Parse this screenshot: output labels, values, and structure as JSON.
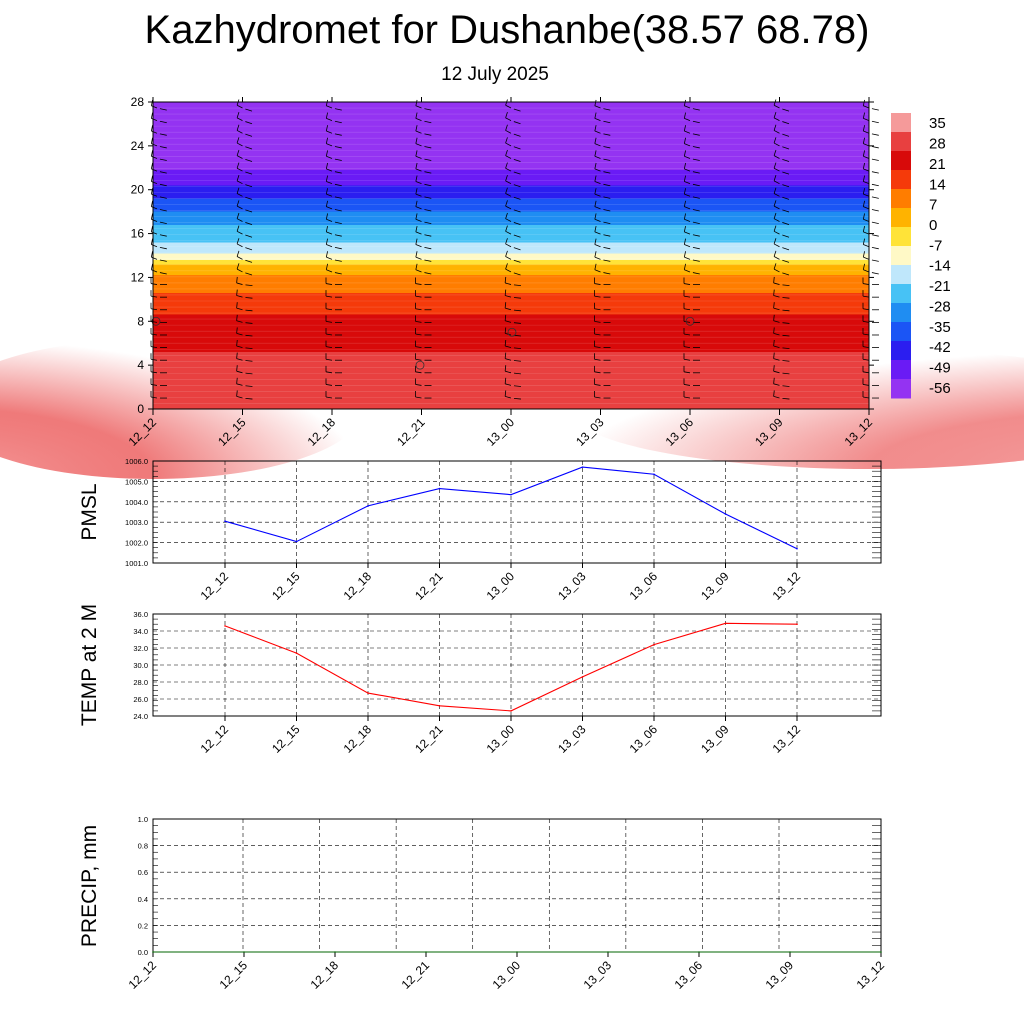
{
  "title": "Kazhydromet for Dushanbe(38.57 68.78)",
  "subtitle": "12 July 2025",
  "chart_data": [
    {
      "type": "heatmap",
      "name": "temperature cross-section with wind barbs",
      "y_ticks": [
        "0",
        "4",
        "8",
        "12",
        "16",
        "20",
        "24",
        "28"
      ],
      "ylim": [
        0,
        28
      ],
      "x_ticks": [
        "12_12",
        "12_15",
        "12_18",
        "12_21",
        "13_00",
        "13_03",
        "13_06",
        "13_09",
        "13_12"
      ],
      "colorbar_labels": [
        "35",
        "28",
        "21",
        "14",
        "7",
        "0",
        "-7",
        "-14",
        "-21",
        "-28",
        "-35",
        "-42",
        "-49",
        "-56"
      ],
      "colorbar_range": [
        -60,
        38
      ],
      "colors": [
        "#9433f2",
        "#6a1bf5",
        "#2b1ef0",
        "#1b55f5",
        "#1f8df2",
        "#47c2f5",
        "#bfe7fb",
        "#fff9c6",
        "#ffe338",
        "#ffb300",
        "#ff7d00",
        "#f53a0a",
        "#d80a0a",
        "#e84040",
        "#f59a9a"
      ],
      "vertical_profile": [
        {
          "level": 0,
          "value": 30
        },
        {
          "level": 4,
          "value": 27
        },
        {
          "level": 8,
          "value": 20
        },
        {
          "level": 11,
          "value": 10
        },
        {
          "level": 13,
          "value": 2
        },
        {
          "level": 13.6,
          "value": -10
        },
        {
          "level": 15,
          "value": -20
        },
        {
          "level": 17,
          "value": -29
        },
        {
          "level": 19,
          "value": -40
        },
        {
          "level": 21,
          "value": -50
        },
        {
          "level": 22.5,
          "value": -58
        },
        {
          "level": 28,
          "value": -59
        }
      ]
    },
    {
      "type": "line",
      "ylabel": "PMSL",
      "categories": [
        "12_12",
        "12_15",
        "12_18",
        "12_21",
        "13_00",
        "13_03",
        "13_06",
        "13_09",
        "13_12"
      ],
      "y_ticks": [
        "1001.0",
        "1002.0",
        "1003.0",
        "1004.0",
        "1005.0",
        "1006.0"
      ],
      "ylim": [
        1001,
        1006
      ],
      "color": "#0000ff",
      "values": [
        1003.05,
        1002.05,
        1003.8,
        1004.65,
        1004.35,
        1005.7,
        1005.35,
        1003.4,
        1001.7
      ]
    },
    {
      "type": "line",
      "ylabel": "TEMP at 2 M",
      "categories": [
        "12_12",
        "12_15",
        "12_18",
        "12_21",
        "13_00",
        "13_03",
        "13_06",
        "13_09",
        "13_12"
      ],
      "y_ticks": [
        "24.0",
        "26.0",
        "28.0",
        "30.0",
        "32.0",
        "34.0",
        "36.0"
      ],
      "ylim": [
        24,
        36
      ],
      "color": "#ff0000",
      "values": [
        34.6,
        31.4,
        26.7,
        25.2,
        24.6,
        28.6,
        32.4,
        34.9,
        34.8
      ]
    },
    {
      "type": "line",
      "ylabel": "PRECIP, mm",
      "categories": [
        "12_12",
        "12_15",
        "12_18",
        "12_21",
        "13_00",
        "13_03",
        "13_06",
        "13_09",
        "13_12"
      ],
      "y_ticks": [
        "0.0",
        "0.2",
        "0.4",
        "0.6",
        "0.8",
        "1.0"
      ],
      "ylim": [
        0,
        1
      ],
      "color": "#006400",
      "values": [
        0,
        0,
        0,
        0,
        0,
        0,
        0,
        0,
        0
      ]
    }
  ]
}
